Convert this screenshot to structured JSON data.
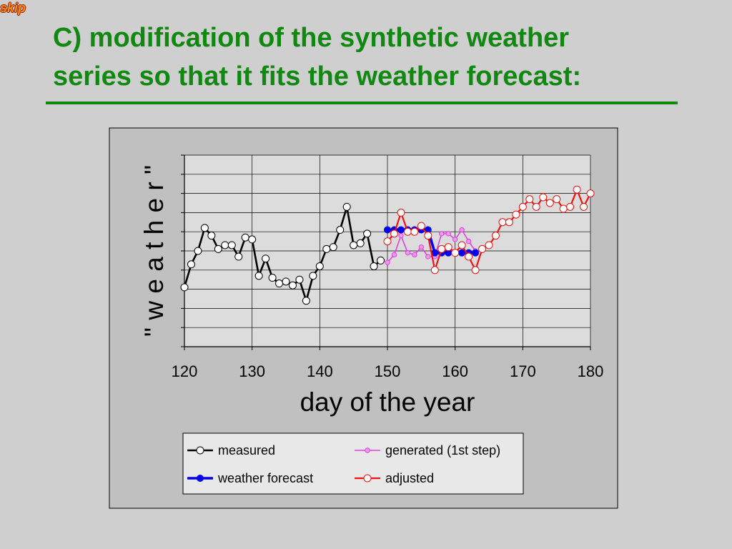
{
  "nav": {
    "skip_label": "skip"
  },
  "slide": {
    "title_line1": "C) modification of the synthetic weather",
    "title_line2": "series so that it fits the weather forecast:"
  },
  "colors": {
    "title": "#118811",
    "measured": "#000000",
    "weather_forecast": "#0000ee",
    "generated": "#dd44dd",
    "adjusted": "#ee1111"
  },
  "chart_data": {
    "type": "line",
    "xlabel": "day of the year",
    "ylabel": "\" w e a t h e r \"",
    "xlim": [
      120,
      180
    ],
    "ylim": [
      0,
      10
    ],
    "x_ticks": [
      "120",
      "130",
      "140",
      "150",
      "160",
      "170",
      "180"
    ],
    "y_tick_labels_shown": false,
    "grid": true,
    "legend_position": "bottom",
    "series": [
      {
        "name": "measured",
        "marker": "open-circle",
        "x": [
          120,
          121,
          122,
          123,
          124,
          125,
          126,
          127,
          128,
          129,
          130,
          131,
          132,
          133,
          134,
          135,
          136,
          137,
          138,
          139,
          140,
          141,
          142,
          143,
          144,
          145,
          146,
          147,
          148,
          149
        ],
        "y": [
          3.1,
          4.3,
          5.0,
          6.2,
          5.8,
          5.1,
          5.3,
          5.3,
          4.7,
          5.7,
          5.6,
          3.7,
          4.6,
          3.6,
          3.3,
          3.4,
          3.2,
          3.5,
          2.4,
          3.7,
          4.2,
          5.1,
          5.2,
          6.1,
          7.3,
          5.3,
          5.4,
          5.9,
          4.2,
          4.5
        ]
      },
      {
        "name": "weather forecast",
        "marker": "filled-circle",
        "x": [
          150,
          151,
          152,
          153,
          154,
          155,
          156,
          157,
          158,
          159,
          160,
          161,
          162,
          163
        ],
        "y": [
          6.1,
          6.1,
          6.1,
          6.1,
          6.1,
          6.1,
          6.1,
          4.9,
          4.9,
          4.9,
          4.9,
          4.9,
          4.9,
          4.9
        ]
      },
      {
        "name": "generated (1st step)",
        "marker": "small-circle",
        "x": [
          150,
          151,
          152,
          153,
          154,
          155,
          156,
          157,
          158,
          159,
          160,
          161,
          162,
          163
        ],
        "y": [
          4.4,
          4.8,
          5.8,
          4.9,
          4.8,
          5.2,
          4.7,
          4.7,
          5.9,
          5.9,
          5.6,
          6.1,
          5.5,
          5.0
        ]
      },
      {
        "name": "adjusted",
        "marker": "open-circle",
        "x": [
          150,
          151,
          152,
          153,
          154,
          155,
          156,
          157,
          158,
          159,
          160,
          161,
          162,
          163,
          164,
          165,
          166,
          167,
          168,
          169,
          170,
          171,
          172,
          173,
          174,
          175,
          176,
          177,
          178,
          179,
          180
        ],
        "y": [
          5.5,
          5.9,
          7.0,
          6.0,
          6.0,
          6.3,
          5.8,
          4.0,
          5.1,
          5.2,
          4.9,
          5.3,
          4.7,
          4.0,
          5.1,
          5.3,
          5.8,
          6.5,
          6.5,
          6.9,
          7.3,
          7.7,
          7.3,
          7.8,
          7.5,
          7.7,
          7.2,
          7.3,
          8.2,
          7.3,
          8.0
        ]
      }
    ]
  }
}
